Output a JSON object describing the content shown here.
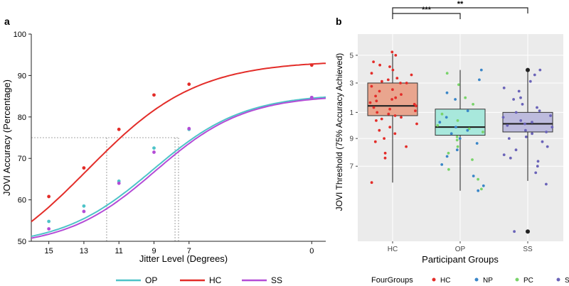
{
  "chart_data": [
    {
      "panel": "a",
      "type": "line",
      "xlabel": "Jitter Level (Degrees)",
      "ylabel": "JOVI Accuracy (Percentage)",
      "xticks": [
        "15",
        "13",
        "11",
        "9",
        "7",
        "0"
      ],
      "yticks": [
        "50",
        "60",
        "70",
        "80",
        "90",
        "100"
      ],
      "xlim": [
        16,
        -0.8
      ],
      "ylim": [
        50,
        100
      ],
      "threshold_level": 75,
      "series": [
        {
          "name": "OP",
          "color": "#4ec3c8",
          "points": [
            [
              15,
              54.8
            ],
            [
              13,
              58.5
            ],
            [
              11,
              64.5
            ],
            [
              9,
              72.5
            ],
            [
              7,
              77.0
            ],
            [
              0,
              84.7
            ]
          ],
          "curve": {
            "lower": 48.8,
            "upper": 85.6,
            "mid": 9.08,
            "scale": 2.6
          },
          "threshold_x": 7.6
        },
        {
          "name": "HC",
          "color": "#e32d29",
          "points": [
            [
              15,
              60.8
            ],
            [
              13,
              67.7
            ],
            [
              11,
              77.0
            ],
            [
              9,
              85.3
            ],
            [
              7,
              87.9
            ],
            [
              0,
              92.5
            ]
          ],
          "curve": {
            "lower": 41.0,
            "upper": 93.6,
            "mid": 12.78,
            "scale": 3.1
          },
          "threshold_x": 11.7
        },
        {
          "name": "SS",
          "color": "#b44cd6",
          "points": [
            [
              15,
              53.0
            ],
            [
              13,
              57.2
            ],
            [
              11,
              64.0
            ],
            [
              9,
              71.5
            ],
            [
              7,
              77.2
            ],
            [
              0,
              84.7
            ]
          ],
          "curve": {
            "lower": 48.6,
            "upper": 85.3,
            "mid": 8.93,
            "scale": 2.55
          },
          "threshold_x": 7.8
        }
      ],
      "legend": [
        "OP",
        "HC",
        "SS"
      ]
    },
    {
      "panel": "b",
      "type": "box",
      "xlabel": "Participant Groups",
      "ylabel": "JOVI Threshold (75% Accuracy Achieved)",
      "categories": [
        "HC",
        "OP",
        "SS"
      ],
      "yticks": [
        "7",
        "9",
        "1",
        "3",
        "5"
      ],
      "ytick_values": [
        4.8,
        6.5,
        8.1,
        9.9,
        11.6
      ],
      "ylim": [
        0.2,
        12.9
      ],
      "boxes": [
        {
          "name": "HC",
          "fill": "#e9a58e",
          "q1": 7.9,
          "median": 8.5,
          "q3": 9.9,
          "whisker_low": 3.8,
          "whisker_high": 11.7
        },
        {
          "name": "OP",
          "fill": "#a8e8dc",
          "q1": 6.7,
          "median": 7.2,
          "q3": 8.3,
          "whisker_low": 3.3,
          "whisker_high": 10.7
        },
        {
          "name": "SS",
          "fill": "#bdbbdd",
          "q1": 6.9,
          "median": 7.4,
          "q3": 8.1,
          "whisker_low": 3.9,
          "whisker_high": 10.7
        }
      ],
      "outliers": [
        {
          "group": "SS",
          "value": 10.7
        },
        {
          "group": "SS",
          "value": 0.8
        }
      ],
      "significance": [
        {
          "from": "HC",
          "to": "OP",
          "label": "***"
        },
        {
          "from": "HC",
          "to": "SS",
          "label": "**"
        }
      ],
      "points": {
        "HC": [
          11.8,
          11.6,
          11.2,
          11.0,
          10.9,
          10.7,
          10.5,
          10.4,
          10.2,
          10.1,
          10.0,
          9.9,
          9.9,
          9.7,
          9.5,
          9.4,
          9.2,
          9.1,
          9.0,
          8.9,
          8.8,
          8.7,
          8.6,
          8.5,
          8.4,
          8.3,
          8.2,
          8.1,
          8.0,
          7.9,
          7.8,
          7.7,
          7.6,
          7.4,
          7.2,
          7.0,
          6.8,
          6.5,
          6.3,
          6.0,
          5.6,
          5.3,
          3.8
        ],
        "OP": [
          10.7,
          10.5,
          10.1,
          9.8,
          9.3,
          9.0,
          8.9,
          8.6,
          8.2,
          8.0,
          7.8,
          7.6,
          7.5,
          7.3,
          7.2,
          7.1,
          7.0,
          6.9,
          6.8,
          6.6,
          6.5,
          6.4,
          6.2,
          6.0,
          5.8,
          5.6,
          5.4,
          5.2,
          4.9,
          4.6,
          4.2,
          4.0,
          3.6,
          3.4,
          3.3
        ],
        "SS": [
          10.7,
          10.4,
          10.0,
          9.6,
          9.4,
          9.0,
          8.9,
          8.6,
          8.4,
          8.2,
          8.1,
          7.9,
          7.8,
          7.6,
          7.5,
          7.4,
          7.3,
          7.2,
          7.0,
          6.9,
          6.8,
          6.6,
          6.5,
          6.3,
          6.0,
          5.8,
          5.5,
          5.3,
          5.1,
          4.8,
          4.4,
          3.7,
          0.8
        ]
      },
      "point_groups": {
        "HC": [
          "HC"
        ],
        "OP": [
          "NP",
          "PC"
        ],
        "SS": [
          "SS"
        ]
      },
      "legend": {
        "title": "FourGroups",
        "items": [
          {
            "name": "HC",
            "color": "#e32d29"
          },
          {
            "name": "NP",
            "color": "#3a86c8"
          },
          {
            "name": "PC",
            "color": "#79d36a"
          },
          {
            "name": "SS",
            "color": "#6a63b8"
          }
        ]
      }
    }
  ],
  "panel_labels": {
    "a": "a",
    "b": "b"
  }
}
